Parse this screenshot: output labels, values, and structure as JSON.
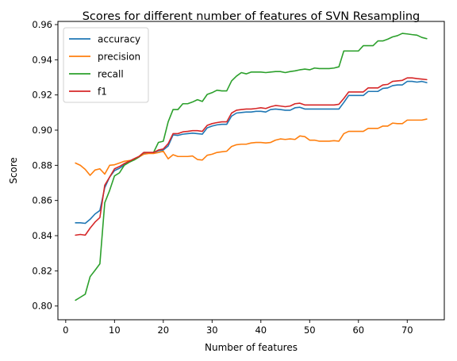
{
  "chart_data": {
    "type": "line",
    "title": "Scores for different number of features of SVN Resampling",
    "xlabel": "Number of features",
    "ylabel": "Score",
    "xlim": [
      -1.6,
      77.6
    ],
    "ylim": [
      0.7922,
      0.9618
    ],
    "xticks": [
      0,
      10,
      20,
      30,
      40,
      50,
      60,
      70
    ],
    "yticks": [
      0.8,
      0.82,
      0.84,
      0.86,
      0.88,
      0.9,
      0.92,
      0.94,
      0.96
    ],
    "xtick_labels": [
      "0",
      "10",
      "20",
      "30",
      "40",
      "50",
      "60",
      "70"
    ],
    "ytick_labels": [
      "0.80",
      "0.82",
      "0.84",
      "0.86",
      "0.88",
      "0.90",
      "0.92",
      "0.94",
      "0.96"
    ],
    "grid": false,
    "legend_position": "upper-left",
    "x": [
      2,
      3,
      4,
      5,
      6,
      7,
      8,
      9,
      10,
      11,
      12,
      13,
      14,
      15,
      16,
      17,
      18,
      19,
      20,
      21,
      22,
      23,
      24,
      25,
      26,
      27,
      28,
      29,
      30,
      31,
      32,
      33,
      34,
      35,
      36,
      37,
      38,
      39,
      40,
      41,
      42,
      43,
      44,
      45,
      46,
      47,
      48,
      49,
      50,
      51,
      52,
      53,
      54,
      55,
      56,
      57,
      58,
      59,
      60,
      61,
      62,
      63,
      64,
      65,
      66,
      67,
      68,
      69,
      70,
      71,
      72,
      73,
      74
    ],
    "series": [
      {
        "name": "accuracy",
        "color": "#1f77b4",
        "values": [
          0.8473,
          0.8473,
          0.847,
          0.8493,
          0.8523,
          0.8543,
          0.8673,
          0.8733,
          0.877,
          0.8783,
          0.8803,
          0.882,
          0.8833,
          0.8847,
          0.887,
          0.887,
          0.887,
          0.8883,
          0.8887,
          0.891,
          0.8973,
          0.897,
          0.8977,
          0.898,
          0.8983,
          0.898,
          0.8977,
          0.9013,
          0.9023,
          0.903,
          0.9033,
          0.9033,
          0.908,
          0.9097,
          0.91,
          0.9103,
          0.9103,
          0.9107,
          0.9107,
          0.9103,
          0.9117,
          0.912,
          0.9117,
          0.9113,
          0.9113,
          0.9127,
          0.913,
          0.912,
          0.912,
          0.912,
          0.912,
          0.912,
          0.912,
          0.912,
          0.912,
          0.9157,
          0.9197,
          0.9197,
          0.9197,
          0.9197,
          0.922,
          0.922,
          0.922,
          0.9237,
          0.924,
          0.9253,
          0.9257,
          0.9257,
          0.9277,
          0.9277,
          0.9273,
          0.9277,
          0.927
        ]
      },
      {
        "name": "precision",
        "color": "#ff7f0e",
        "values": [
          0.8813,
          0.88,
          0.8777,
          0.8743,
          0.8773,
          0.878,
          0.875,
          0.88,
          0.8803,
          0.8813,
          0.8823,
          0.8827,
          0.883,
          0.8847,
          0.8863,
          0.8867,
          0.8867,
          0.8873,
          0.888,
          0.8837,
          0.886,
          0.885,
          0.885,
          0.885,
          0.8853,
          0.8833,
          0.883,
          0.8857,
          0.8863,
          0.8873,
          0.8877,
          0.888,
          0.8907,
          0.8917,
          0.892,
          0.892,
          0.8927,
          0.893,
          0.893,
          0.8927,
          0.893,
          0.8943,
          0.895,
          0.8947,
          0.895,
          0.8947,
          0.8967,
          0.8963,
          0.8943,
          0.8943,
          0.8937,
          0.8937,
          0.8937,
          0.894,
          0.8937,
          0.898,
          0.8993,
          0.8993,
          0.8993,
          0.8993,
          0.901,
          0.901,
          0.901,
          0.9023,
          0.9023,
          0.904,
          0.9037,
          0.9037,
          0.9057,
          0.9057,
          0.9057,
          0.9057,
          0.9063
        ]
      },
      {
        "name": "recall",
        "color": "#2ca02c",
        "values": [
          0.8033,
          0.805,
          0.8067,
          0.8167,
          0.8203,
          0.824,
          0.8587,
          0.8657,
          0.874,
          0.8757,
          0.88,
          0.8817,
          0.883,
          0.8847,
          0.8873,
          0.8873,
          0.8873,
          0.893,
          0.8937,
          0.9047,
          0.9117,
          0.9117,
          0.915,
          0.915,
          0.916,
          0.9173,
          0.9163,
          0.9203,
          0.9213,
          0.9227,
          0.9223,
          0.9223,
          0.928,
          0.9307,
          0.9327,
          0.932,
          0.933,
          0.933,
          0.933,
          0.9327,
          0.933,
          0.9333,
          0.9333,
          0.9327,
          0.9333,
          0.9337,
          0.9343,
          0.9347,
          0.9343,
          0.9353,
          0.935,
          0.935,
          0.935,
          0.9353,
          0.936,
          0.945,
          0.945,
          0.945,
          0.945,
          0.948,
          0.948,
          0.948,
          0.9507,
          0.9507,
          0.9517,
          0.953,
          0.9537,
          0.955,
          0.9547,
          0.9543,
          0.954,
          0.9527,
          0.952
        ]
      },
      {
        "name": "f1",
        "color": "#d62728",
        "values": [
          0.8403,
          0.8407,
          0.8403,
          0.8443,
          0.8477,
          0.8503,
          0.8687,
          0.8733,
          0.878,
          0.8793,
          0.881,
          0.8823,
          0.8837,
          0.885,
          0.8873,
          0.8873,
          0.8873,
          0.8887,
          0.8893,
          0.8923,
          0.898,
          0.898,
          0.899,
          0.8993,
          0.8997,
          0.8997,
          0.8993,
          0.9027,
          0.9037,
          0.9043,
          0.9047,
          0.9047,
          0.9097,
          0.9113,
          0.9117,
          0.912,
          0.912,
          0.9123,
          0.9127,
          0.9123,
          0.9133,
          0.914,
          0.9137,
          0.9133,
          0.9137,
          0.915,
          0.9153,
          0.9143,
          0.9143,
          0.9143,
          0.9143,
          0.9143,
          0.9143,
          0.9143,
          0.9147,
          0.918,
          0.9217,
          0.9217,
          0.9217,
          0.9217,
          0.924,
          0.924,
          0.924,
          0.9257,
          0.926,
          0.9277,
          0.928,
          0.9283,
          0.9297,
          0.9297,
          0.9293,
          0.929,
          0.9287
        ]
      }
    ]
  }
}
